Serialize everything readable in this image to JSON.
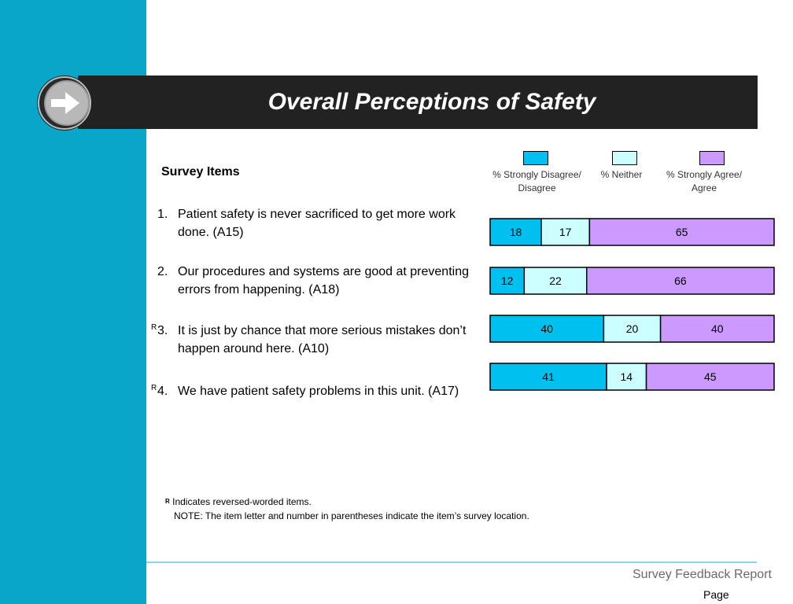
{
  "title": "Overall Perceptions of Safety",
  "items_header": "Survey Items",
  "items": [
    {
      "num": "1.",
      "reversed": "",
      "text": "Patient safety is never sacrificed to get more work done.  (A15)"
    },
    {
      "num": "2.",
      "reversed": "",
      "text": "Our procedures and systems are good at preventing errors from happening.  (A18)"
    },
    {
      "num": "3.",
      "reversed": "R",
      "text": "It is just by chance that more serious mistakes don’t happen around here.  (A10)"
    },
    {
      "num": "4.",
      "reversed": "R",
      "text": "We have patient safety problems in this unit.  (A17)"
    }
  ],
  "legend": [
    {
      "label": "% Strongly Disagree/ Disagree",
      "color": "#00c0f0"
    },
    {
      "label": "% Neither",
      "color": "#ccffff"
    },
    {
      "label": "% Strongly Agree/ Agree",
      "color": "#cc99ff"
    }
  ],
  "chart_data": {
    "type": "bar",
    "orientation": "horizontal",
    "stacked": true,
    "percent_scale": [
      0,
      100
    ],
    "categories": [
      "1",
      "2",
      "3",
      "4"
    ],
    "series": [
      {
        "name": "% Strongly Disagree/ Disagree",
        "values": [
          18,
          12,
          40,
          41
        ]
      },
      {
        "name": "% Neither",
        "values": [
          17,
          22,
          20,
          14
        ]
      },
      {
        "name": "% Strongly Agree/ Agree",
        "values": [
          65,
          66,
          40,
          45
        ]
      }
    ],
    "data_labels": true,
    "legend_position": "top"
  },
  "footnote": {
    "marker": "R",
    "line1": "Indicates reversed-worded items.",
    "line2": "NOTE:  The item letter and number in parentheses indicate the item’s survey location."
  },
  "footer": {
    "report_name": "Survey Feedback Report",
    "page_label": "Page"
  }
}
